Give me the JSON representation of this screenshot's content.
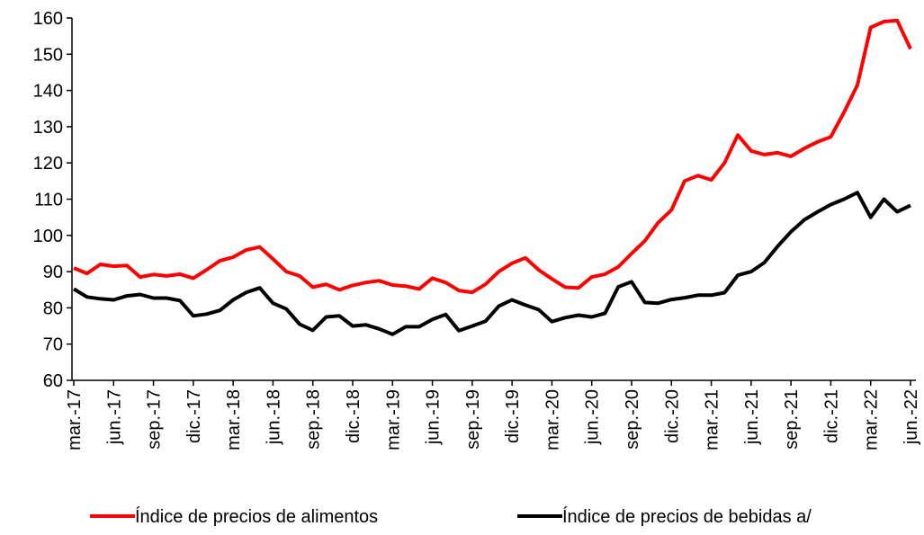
{
  "chart_data": {
    "type": "line",
    "categories": [
      "mar.-17",
      null,
      null,
      "jun.-17",
      null,
      null,
      "sep.-17",
      null,
      null,
      "dic.-17",
      null,
      null,
      "mar.-18",
      null,
      null,
      "jun.-18",
      null,
      null,
      "sep.-18",
      null,
      null,
      "dic.-18",
      null,
      null,
      "mar.-19",
      null,
      null,
      "jun.-19",
      null,
      null,
      "sep.-19",
      null,
      null,
      "dic.-19",
      null,
      null,
      "mar.-20",
      null,
      null,
      "jun.-20",
      null,
      null,
      "sep.-20",
      null,
      null,
      "dic.-20",
      null,
      null,
      "mar.-21",
      null,
      null,
      "jun.-21",
      null,
      null,
      "sep.-21",
      null,
      null,
      "dic.-21",
      null,
      null,
      "mar.-22",
      null,
      null,
      "jun.-22"
    ],
    "series": [
      {
        "name": "Índice de precios de alimentos",
        "color": "#ff0000",
        "values": [
          91,
          89.5,
          92,
          91.5,
          91.7,
          88.5,
          89.2,
          88.8,
          89.3,
          88.2,
          90.5,
          93,
          94,
          96,
          96.8,
          93.5,
          90,
          88.8,
          85.7,
          86.5,
          85,
          86.2,
          87,
          87.5,
          86.3,
          86,
          85.2,
          88.2,
          87,
          84.8,
          84.3,
          86.5,
          90,
          92.3,
          93.8,
          90.5,
          88,
          85.7,
          85.5,
          88.5,
          89.3,
          91.3,
          95,
          98.5,
          103.5,
          107,
          115,
          116.5,
          115.3,
          120,
          127.7,
          123.3,
          122.3,
          122.8,
          121.8,
          124,
          125.8,
          127.2,
          134,
          141.5,
          157.4,
          159,
          159.3,
          151.5
        ]
      },
      {
        "name": "Índice de precios de bebidas a/",
        "color": "#000000",
        "values": [
          85.2,
          83,
          82.5,
          82.2,
          83.3,
          83.7,
          82.7,
          82.7,
          82,
          77.8,
          78.3,
          79.3,
          82.2,
          84.3,
          85.5,
          81.3,
          79.7,
          75.5,
          73.8,
          77.5,
          77.8,
          75,
          75.3,
          74.2,
          72.7,
          74.8,
          74.8,
          76.8,
          78.2,
          73.7,
          75,
          76.3,
          80.5,
          82.2,
          80.8,
          79.5,
          76.2,
          77.3,
          78,
          77.5,
          78.5,
          85.8,
          87.2,
          81.5,
          81.3,
          82.3,
          82.8,
          83.5,
          83.5,
          84.2,
          89,
          90,
          92.5,
          97,
          101,
          104.3,
          106.5,
          108.5,
          110,
          111.8,
          105,
          110,
          106.5,
          108.3
        ]
      }
    ],
    "ylim": [
      60,
      160
    ],
    "yticks": [
      60,
      70,
      80,
      90,
      100,
      110,
      120,
      130,
      140,
      150,
      160
    ],
    "grid": false
  }
}
